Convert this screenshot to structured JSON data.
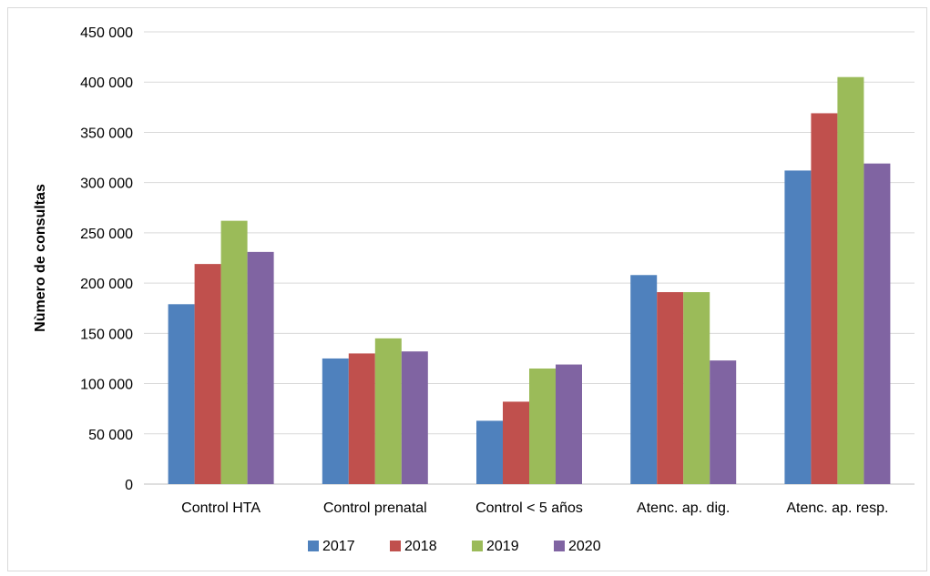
{
  "chart_data": {
    "type": "bar",
    "categories": [
      "Control HTA",
      "Control prenatal",
      "Control < 5 años",
      "Atenc. ap. dig.",
      "Atenc. ap. resp."
    ],
    "series": [
      {
        "name": "2017",
        "color": "#4f81bd",
        "values": [
          179000,
          125000,
          63000,
          208000,
          312000
        ]
      },
      {
        "name": "2018",
        "color": "#c0504d",
        "values": [
          219000,
          130000,
          82000,
          191000,
          369000
        ]
      },
      {
        "name": "2019",
        "color": "#9bbb59",
        "values": [
          262000,
          145000,
          115000,
          191000,
          405000
        ]
      },
      {
        "name": "2020",
        "color": "#8064a2",
        "values": [
          231000,
          132000,
          119000,
          123000,
          319000
        ]
      }
    ],
    "ylabel": "Nùmero de consultas",
    "ylim": [
      0,
      450000
    ],
    "yticks": [
      0,
      50000,
      100000,
      150000,
      200000,
      250000,
      300000,
      350000,
      400000,
      450000
    ],
    "ytick_labels": [
      "0",
      "50 000",
      "100 000",
      "150 000",
      "200 000",
      "250 000",
      "300 000",
      "350 000",
      "400 000",
      "450 000"
    ],
    "grid": true,
    "legend_position": "bottom"
  }
}
